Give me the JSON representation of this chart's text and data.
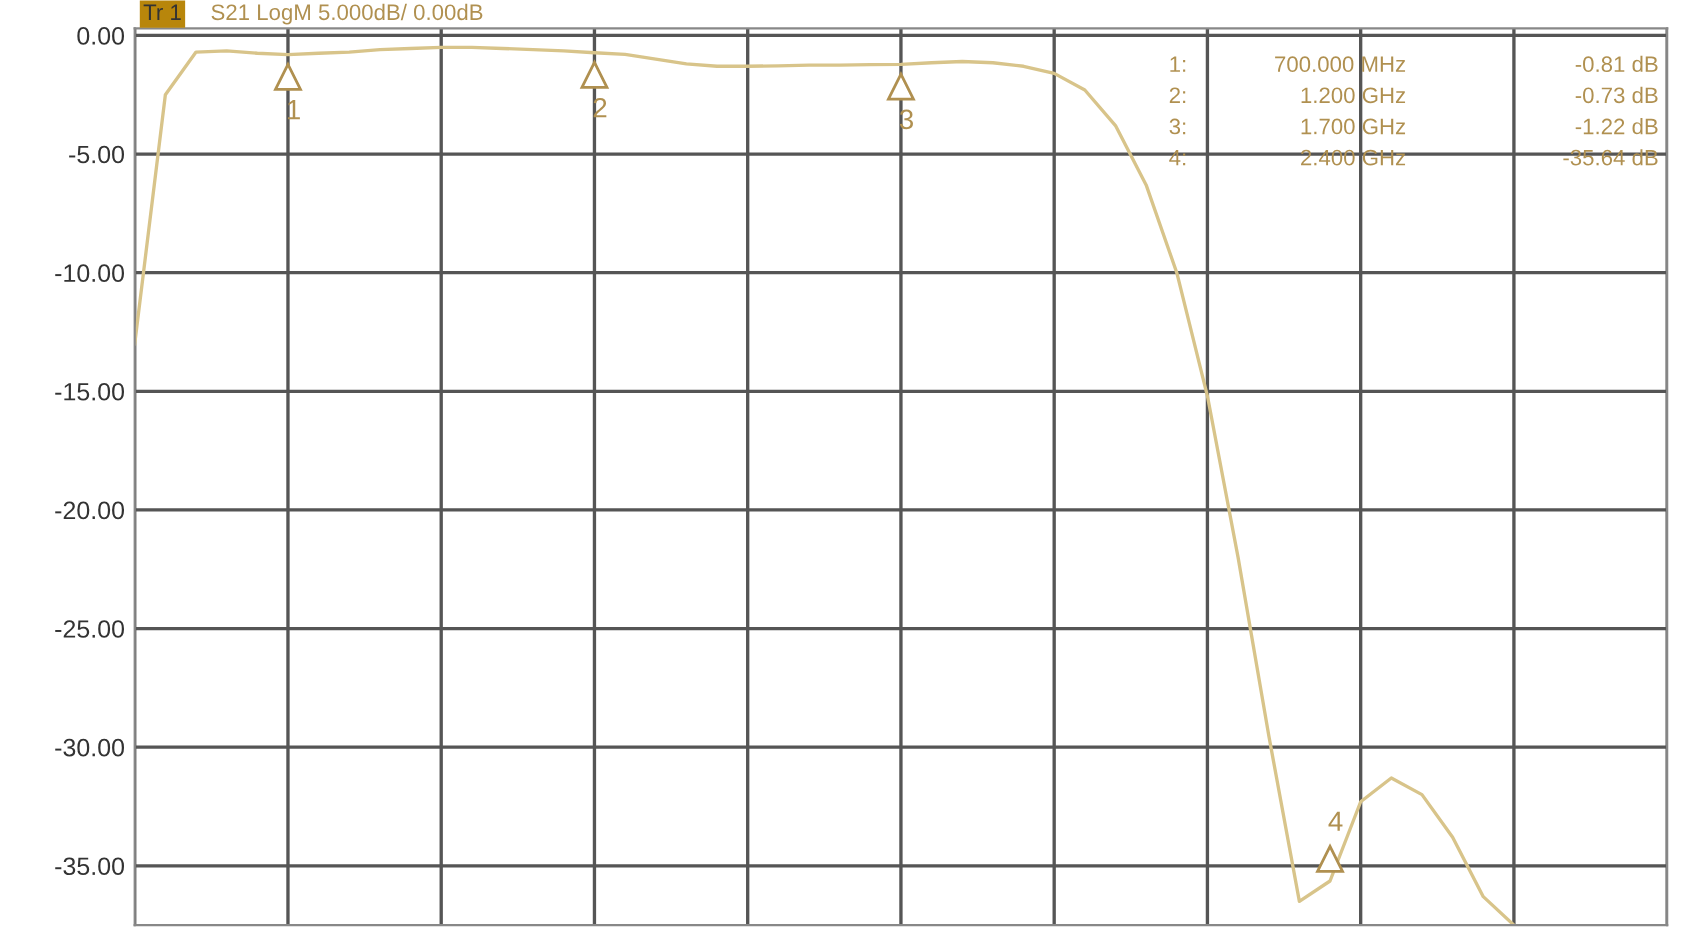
{
  "chart_data": {
    "type": "line",
    "title": "S21 LogM 5.000dB/ 0.00dB",
    "categories": [
      null,
      null,
      null,
      null,
      null,
      null,
      null,
      null,
      null,
      null,
      null,
      null,
      null,
      null,
      null,
      null,
      null,
      null,
      null,
      null,
      null,
      null,
      null,
      null,
      null,
      null,
      null,
      null,
      null,
      null,
      null,
      null,
      null,
      null,
      null,
      null,
      null,
      null,
      null,
      null,
      null,
      null,
      null,
      null,
      null,
      null,
      null,
      null,
      null,
      null,
      null
    ],
    "series": [
      {
        "color": "#d8c48a",
        "values": [
          -13,
          -2.5,
          -0.7,
          -0.65,
          -0.75,
          -0.81,
          -0.75,
          -0.7,
          -0.6,
          -0.55,
          -0.5,
          -0.5,
          -0.55,
          -0.6,
          -0.65,
          -0.73,
          -0.8,
          -1.0,
          -1.2,
          -1.3,
          -1.3,
          -1.28,
          -1.25,
          -1.25,
          -1.23,
          -1.22,
          -1.15,
          -1.1,
          -1.15,
          -1.3,
          -1.6,
          -2.3,
          -3.8,
          -6.3,
          -10,
          -15.2,
          -22,
          -29.5,
          -36.5,
          -35.64,
          -32.3,
          -31.3,
          -32,
          -33.8,
          -36.3,
          -37.5,
          null,
          null,
          null,
          null,
          null
        ]
      }
    ],
    "ylim": [
      -37.5,
      0.3
    ],
    "yticks": [
      {
        "value": 0,
        "label": "0.00"
      },
      {
        "value": -5,
        "label": "-5.00"
      },
      {
        "value": -10,
        "label": "-10.00"
      },
      {
        "value": -15,
        "label": "-15.00"
      },
      {
        "value": -20,
        "label": "-20.00"
      },
      {
        "value": -25,
        "label": "-25.00"
      },
      {
        "value": -30,
        "label": "-30.00"
      },
      {
        "value": -35,
        "label": "-35.00"
      }
    ],
    "grid": true,
    "annotations": [
      {
        "text": "1",
        "y": -0.81
      },
      {
        "text": "2",
        "y": -0.73
      },
      {
        "text": "3",
        "y": -1.22
      },
      {
        "text": "4",
        "y": -35.64
      },
      "Tr 1",
      "1:",
      "700.000 MHz",
      "-0.81 dB",
      "2:",
      "1.200 GHz",
      "-0.73 dB",
      "3:",
      "1.700 GHz",
      "-1.22 dB",
      "4:",
      "2.400 GHz",
      "-35.64 dB"
    ]
  }
}
